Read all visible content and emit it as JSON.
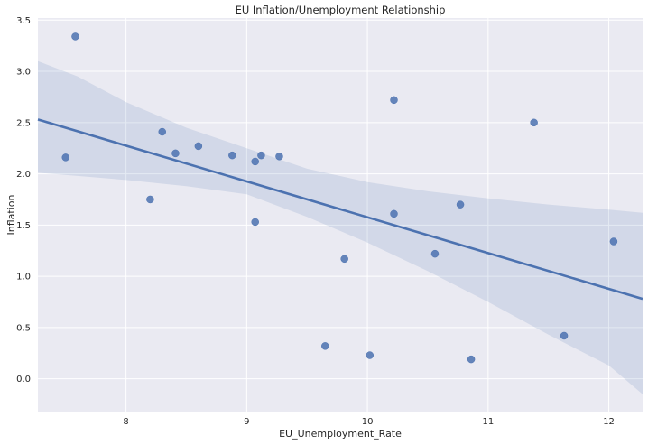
{
  "chart_data": {
    "type": "scatter",
    "title": "EU Inflation/Unemployment Relationship",
    "xlabel": "EU_Unemployment_Rate",
    "ylabel": "Inflation",
    "xlim": [
      7.27,
      12.28
    ],
    "ylim": [
      -0.32,
      3.52
    ],
    "x_ticks": [
      8,
      9,
      10,
      11,
      12
    ],
    "x_tick_labels": [
      "8",
      "9",
      "10",
      "11",
      "12"
    ],
    "y_ticks": [
      0.0,
      0.5,
      1.0,
      1.5,
      2.0,
      2.5,
      3.0,
      3.5
    ],
    "y_tick_labels": [
      "0.0",
      "0.5",
      "1.0",
      "1.5",
      "2.0",
      "2.5",
      "3.0",
      "3.5"
    ],
    "grid": true,
    "points": [
      {
        "x": 7.58,
        "y": 3.34
      },
      {
        "x": 7.5,
        "y": 2.16
      },
      {
        "x": 8.2,
        "y": 1.75
      },
      {
        "x": 8.3,
        "y": 2.41
      },
      {
        "x": 8.41,
        "y": 2.2
      },
      {
        "x": 8.6,
        "y": 2.27
      },
      {
        "x": 8.88,
        "y": 2.18
      },
      {
        "x": 9.07,
        "y": 2.12
      },
      {
        "x": 9.12,
        "y": 2.18
      },
      {
        "x": 9.27,
        "y": 2.17
      },
      {
        "x": 9.07,
        "y": 1.53
      },
      {
        "x": 9.65,
        "y": 0.32
      },
      {
        "x": 9.81,
        "y": 1.17
      },
      {
        "x": 10.02,
        "y": 0.23
      },
      {
        "x": 10.22,
        "y": 2.72
      },
      {
        "x": 10.22,
        "y": 1.61
      },
      {
        "x": 10.56,
        "y": 1.22
      },
      {
        "x": 10.77,
        "y": 1.7
      },
      {
        "x": 10.86,
        "y": 0.19
      },
      {
        "x": 11.38,
        "y": 2.5
      },
      {
        "x": 11.63,
        "y": 0.42
      },
      {
        "x": 12.04,
        "y": 1.34
      }
    ],
    "regression": {
      "x": [
        7.27,
        12.28
      ],
      "y": [
        2.53,
        0.78
      ]
    },
    "confidence_band": {
      "x": [
        7.27,
        7.6,
        8.0,
        8.5,
        9.0,
        9.5,
        10.0,
        10.5,
        11.0,
        11.5,
        12.0,
        12.28
      ],
      "upper": [
        3.1,
        2.95,
        2.7,
        2.45,
        2.25,
        2.05,
        1.92,
        1.83,
        1.76,
        1.7,
        1.65,
        1.62
      ],
      "lower": [
        2.01,
        1.98,
        1.94,
        1.88,
        1.8,
        1.58,
        1.33,
        1.05,
        0.75,
        0.43,
        0.13,
        -0.15
      ]
    },
    "colors": {
      "background": "#eaeaf2",
      "grid": "#ffffff",
      "points": "#4c72b0",
      "line": "#4c72b0",
      "band": "#4c72b0"
    }
  }
}
